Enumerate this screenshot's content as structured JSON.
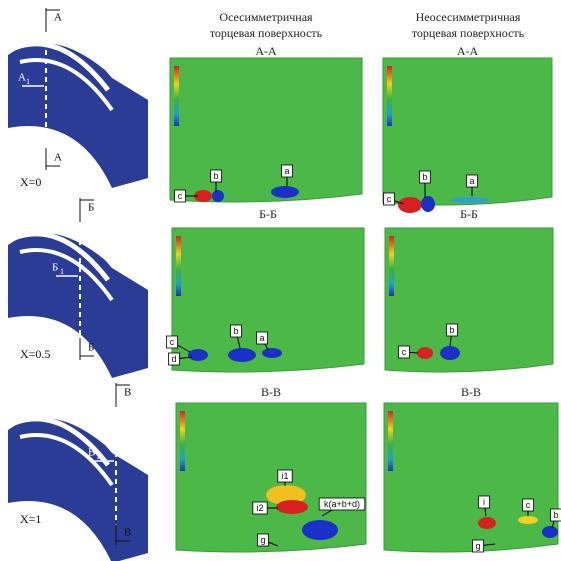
{
  "columns": [
    {
      "title_lines": [
        "Осесимметричная",
        "торцевая поверхность"
      ]
    },
    {
      "title_lines": [
        "Неосесимметричная",
        "торцевая поверхность"
      ]
    }
  ],
  "rows": [
    {
      "x_label": "X=0",
      "section_marks": {
        "top": "А",
        "middle": "А",
        "middle_sub": "1",
        "bottom": "А"
      },
      "panels": [
        {
          "label": "А-А",
          "callouts": [
            "a",
            "b",
            "c"
          ]
        },
        {
          "label": "А-А",
          "callouts": [
            "b",
            "a",
            "c"
          ]
        }
      ]
    },
    {
      "x_label": "X=0.5",
      "section_marks": {
        "top": "Б",
        "middle": "Б",
        "middle_sub": "1",
        "bottom": "Б"
      },
      "panels": [
        {
          "label": "Б-Б",
          "callouts": [
            "b",
            "a",
            "c",
            "d"
          ]
        },
        {
          "label": "Б-Б",
          "callouts": [
            "b",
            "c"
          ]
        }
      ]
    },
    {
      "x_label": "X=1",
      "section_marks": {
        "top": "В",
        "middle": "В",
        "middle_sub": "1",
        "bottom": "В"
      },
      "panels": [
        {
          "label": "В-В",
          "callouts": [
            "i1",
            "i2",
            "k(a+b+d)",
            "g"
          ]
        },
        {
          "label": "В-В",
          "callouts": [
            "i",
            "c",
            "b",
            "g"
          ]
        }
      ]
    }
  ]
}
